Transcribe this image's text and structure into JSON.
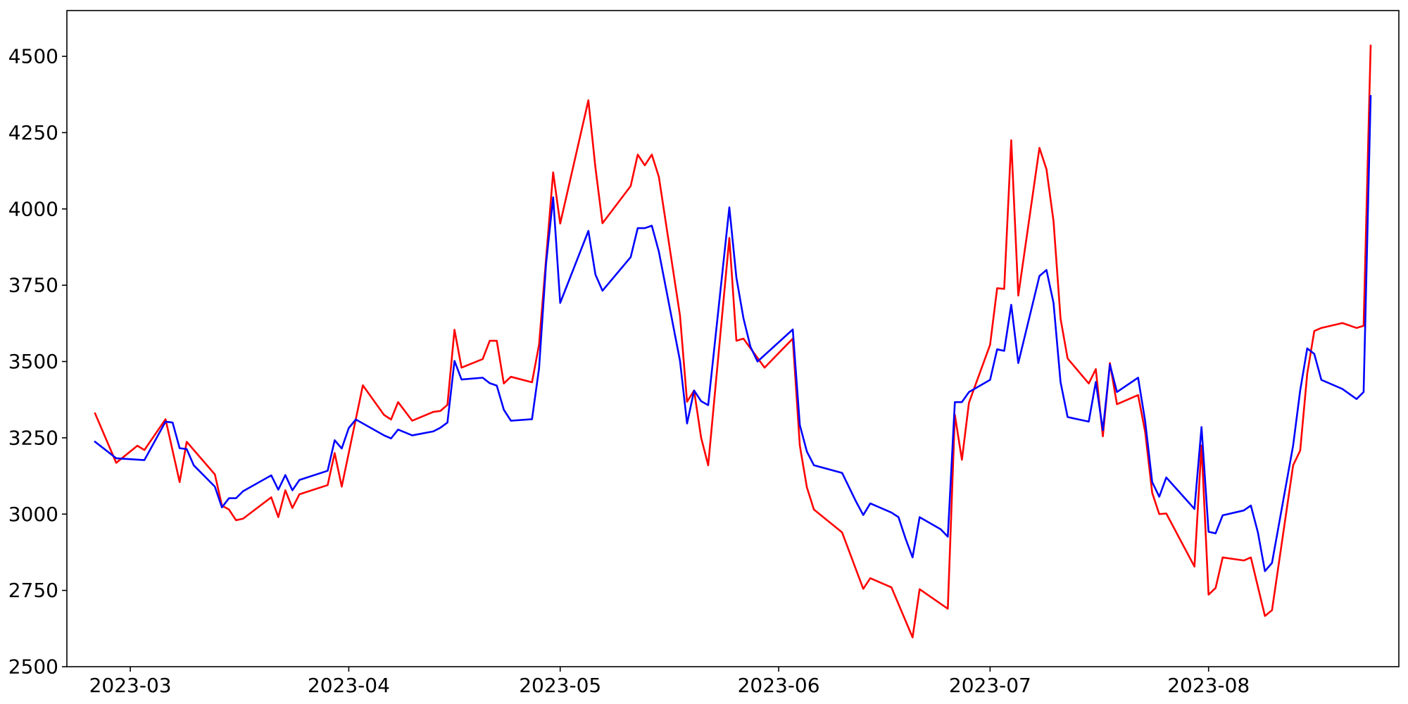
{
  "chart_data": {
    "type": "line",
    "title": "",
    "xlabel": "",
    "ylabel": "",
    "xlim": [
      "2023-02-20",
      "2023-08-28"
    ],
    "ylim": [
      2500,
      4650
    ],
    "x_ticks": [
      "2023-03-01",
      "2023-04-01",
      "2023-05-01",
      "2023-06-01",
      "2023-07-01",
      "2023-08-01"
    ],
    "x_tick_labels": [
      "2023-03",
      "2023-04",
      "2023-05",
      "2023-06",
      "2023-07",
      "2023-08"
    ],
    "y_ticks": [
      2500,
      2750,
      3000,
      3250,
      3500,
      3750,
      4000,
      4250,
      4500
    ],
    "y_tick_labels": [
      "2500",
      "2750",
      "3000",
      "3250",
      "3500",
      "3750",
      "4000",
      "4250",
      "4500"
    ],
    "grid": false,
    "series": [
      {
        "color": "#ff0000",
        "points": [
          [
            "2023-02-24",
            3330
          ],
          [
            "2023-02-27",
            3168
          ],
          [
            "2023-03-02",
            3224
          ],
          [
            "2023-03-03",
            3210
          ],
          [
            "2023-03-06",
            3311
          ],
          [
            "2023-03-08",
            3105
          ],
          [
            "2023-03-09",
            3237
          ],
          [
            "2023-03-13",
            3130
          ],
          [
            "2023-03-14",
            3028
          ],
          [
            "2023-03-15",
            3015
          ],
          [
            "2023-03-16",
            2980
          ],
          [
            "2023-03-17",
            2985
          ],
          [
            "2023-03-21",
            3055
          ],
          [
            "2023-03-22",
            2990
          ],
          [
            "2023-03-23",
            3078
          ],
          [
            "2023-03-24",
            3020
          ],
          [
            "2023-03-25",
            3065
          ],
          [
            "2023-03-29",
            3095
          ],
          [
            "2023-03-30",
            3200
          ],
          [
            "2023-03-31",
            3090
          ],
          [
            "2023-04-03",
            3422
          ],
          [
            "2023-04-06",
            3325
          ],
          [
            "2023-04-07",
            3310
          ],
          [
            "2023-04-08",
            3367
          ],
          [
            "2023-04-10",
            3306
          ],
          [
            "2023-04-13",
            3335
          ],
          [
            "2023-04-14",
            3338
          ],
          [
            "2023-04-15",
            3358
          ],
          [
            "2023-04-16",
            3604
          ],
          [
            "2023-04-17",
            3480
          ],
          [
            "2023-04-20",
            3508
          ],
          [
            "2023-04-21",
            3568
          ],
          [
            "2023-04-22",
            3568
          ],
          [
            "2023-04-23",
            3428
          ],
          [
            "2023-04-24",
            3450
          ],
          [
            "2023-04-27",
            3432
          ],
          [
            "2023-04-28",
            3555
          ],
          [
            "2023-04-30",
            4120
          ],
          [
            "2023-05-01",
            3952
          ],
          [
            "2023-05-05",
            4356
          ],
          [
            "2023-05-06",
            4135
          ],
          [
            "2023-05-07",
            3953
          ],
          [
            "2023-05-11",
            4075
          ],
          [
            "2023-05-12",
            4178
          ],
          [
            "2023-05-13",
            4143
          ],
          [
            "2023-05-14",
            4178
          ],
          [
            "2023-05-15",
            4105
          ],
          [
            "2023-05-18",
            3650
          ],
          [
            "2023-05-19",
            3368
          ],
          [
            "2023-05-20",
            3405
          ],
          [
            "2023-05-21",
            3250
          ],
          [
            "2023-05-22",
            3160
          ],
          [
            "2023-05-25",
            3905
          ],
          [
            "2023-05-26",
            3568
          ],
          [
            "2023-05-27",
            3575
          ],
          [
            "2023-05-30",
            3480
          ],
          [
            "2023-06-03",
            3575
          ],
          [
            "2023-06-04",
            3225
          ],
          [
            "2023-06-05",
            3088
          ],
          [
            "2023-06-06",
            3015
          ],
          [
            "2023-06-10",
            2940
          ],
          [
            "2023-06-13",
            2755
          ],
          [
            "2023-06-14",
            2790
          ],
          [
            "2023-06-17",
            2760
          ],
          [
            "2023-06-20",
            2596
          ],
          [
            "2023-06-21",
            2754
          ],
          [
            "2023-06-25",
            2690
          ],
          [
            "2023-06-26",
            3325
          ],
          [
            "2023-06-27",
            3178
          ],
          [
            "2023-06-28",
            3365
          ],
          [
            "2023-07-01",
            3555
          ],
          [
            "2023-07-02",
            3740
          ],
          [
            "2023-07-03",
            3738
          ],
          [
            "2023-07-04",
            4225
          ],
          [
            "2023-07-05",
            3716
          ],
          [
            "2023-07-08",
            4200
          ],
          [
            "2023-07-09",
            4130
          ],
          [
            "2023-07-10",
            3960
          ],
          [
            "2023-07-11",
            3640
          ],
          [
            "2023-07-12",
            3510
          ],
          [
            "2023-07-15",
            3428
          ],
          [
            "2023-07-16",
            3475
          ],
          [
            "2023-07-17",
            3255
          ],
          [
            "2023-07-18",
            3495
          ],
          [
            "2023-07-19",
            3360
          ],
          [
            "2023-07-22",
            3390
          ],
          [
            "2023-07-23",
            3270
          ],
          [
            "2023-07-24",
            3070
          ],
          [
            "2023-07-25",
            3000
          ],
          [
            "2023-07-26",
            3002
          ],
          [
            "2023-07-30",
            2828
          ],
          [
            "2023-07-31",
            3225
          ],
          [
            "2023-08-01",
            2736
          ],
          [
            "2023-08-02",
            2758
          ],
          [
            "2023-08-03",
            2858
          ],
          [
            "2023-08-06",
            2848
          ],
          [
            "2023-08-07",
            2858
          ],
          [
            "2023-08-09",
            2666
          ],
          [
            "2023-08-10",
            2685
          ],
          [
            "2023-08-13",
            3160
          ],
          [
            "2023-08-14",
            3208
          ],
          [
            "2023-08-15",
            3460
          ],
          [
            "2023-08-16",
            3600
          ],
          [
            "2023-08-17",
            3610
          ],
          [
            "2023-08-20",
            3626
          ],
          [
            "2023-08-22",
            3610
          ],
          [
            "2023-08-23",
            3617
          ],
          [
            "2023-08-24",
            4535
          ]
        ]
      },
      {
        "color": "#0000ff",
        "points": [
          [
            "2023-02-24",
            3237
          ],
          [
            "2023-02-27",
            3183
          ],
          [
            "2023-03-03",
            3177
          ],
          [
            "2023-03-06",
            3303
          ],
          [
            "2023-03-07",
            3300
          ],
          [
            "2023-03-08",
            3216
          ],
          [
            "2023-03-09",
            3213
          ],
          [
            "2023-03-10",
            3160
          ],
          [
            "2023-03-13",
            3090
          ],
          [
            "2023-03-14",
            3022
          ],
          [
            "2023-03-15",
            3052
          ],
          [
            "2023-03-16",
            3052
          ],
          [
            "2023-03-17",
            3075
          ],
          [
            "2023-03-21",
            3127
          ],
          [
            "2023-03-22",
            3080
          ],
          [
            "2023-03-23",
            3128
          ],
          [
            "2023-03-24",
            3078
          ],
          [
            "2023-03-25",
            3112
          ],
          [
            "2023-03-29",
            3142
          ],
          [
            "2023-03-30",
            3242
          ],
          [
            "2023-03-31",
            3215
          ],
          [
            "2023-04-01",
            3282
          ],
          [
            "2023-04-02",
            3310
          ],
          [
            "2023-04-06",
            3258
          ],
          [
            "2023-04-07",
            3248
          ],
          [
            "2023-04-08",
            3277
          ],
          [
            "2023-04-10",
            3258
          ],
          [
            "2023-04-13",
            3271
          ],
          [
            "2023-04-14",
            3283
          ],
          [
            "2023-04-15",
            3300
          ],
          [
            "2023-04-16",
            3502
          ],
          [
            "2023-04-17",
            3441
          ],
          [
            "2023-04-20",
            3447
          ],
          [
            "2023-04-21",
            3429
          ],
          [
            "2023-04-22",
            3421
          ],
          [
            "2023-04-23",
            3342
          ],
          [
            "2023-04-24",
            3306
          ],
          [
            "2023-04-27",
            3311
          ],
          [
            "2023-04-28",
            3478
          ],
          [
            "2023-04-29",
            3822
          ],
          [
            "2023-04-30",
            4038
          ],
          [
            "2023-05-01",
            3692
          ],
          [
            "2023-05-05",
            3928
          ],
          [
            "2023-05-06",
            3785
          ],
          [
            "2023-05-07",
            3732
          ],
          [
            "2023-05-11",
            3842
          ],
          [
            "2023-05-12",
            3937
          ],
          [
            "2023-05-13",
            3937
          ],
          [
            "2023-05-14",
            3945
          ],
          [
            "2023-05-15",
            3860
          ],
          [
            "2023-05-18",
            3502
          ],
          [
            "2023-05-19",
            3297
          ],
          [
            "2023-05-20",
            3405
          ],
          [
            "2023-05-21",
            3370
          ],
          [
            "2023-05-22",
            3357
          ],
          [
            "2023-05-25",
            4005
          ],
          [
            "2023-05-26",
            3775
          ],
          [
            "2023-05-27",
            3642
          ],
          [
            "2023-05-28",
            3548
          ],
          [
            "2023-05-29",
            3500
          ],
          [
            "2023-06-03",
            3605
          ],
          [
            "2023-06-04",
            3292
          ],
          [
            "2023-06-05",
            3205
          ],
          [
            "2023-06-06",
            3160
          ],
          [
            "2023-06-10",
            3135
          ],
          [
            "2023-06-12",
            3040
          ],
          [
            "2023-06-13",
            2997
          ],
          [
            "2023-06-14",
            3035
          ],
          [
            "2023-06-17",
            3005
          ],
          [
            "2023-06-18",
            2990
          ],
          [
            "2023-06-19",
            2920
          ],
          [
            "2023-06-20",
            2858
          ],
          [
            "2023-06-21",
            2990
          ],
          [
            "2023-06-24",
            2950
          ],
          [
            "2023-06-25",
            2926
          ],
          [
            "2023-06-26",
            3367
          ],
          [
            "2023-06-27",
            3367
          ],
          [
            "2023-06-28",
            3400
          ],
          [
            "2023-07-01",
            3440
          ],
          [
            "2023-07-02",
            3540
          ],
          [
            "2023-07-03",
            3535
          ],
          [
            "2023-07-04",
            3686
          ],
          [
            "2023-07-05",
            3495
          ],
          [
            "2023-07-08",
            3780
          ],
          [
            "2023-07-09",
            3800
          ],
          [
            "2023-07-10",
            3692
          ],
          [
            "2023-07-11",
            3432
          ],
          [
            "2023-07-12",
            3318
          ],
          [
            "2023-07-15",
            3303
          ],
          [
            "2023-07-16",
            3433
          ],
          [
            "2023-07-17",
            3275
          ],
          [
            "2023-07-18",
            3490
          ],
          [
            "2023-07-19",
            3400
          ],
          [
            "2023-07-22",
            3447
          ],
          [
            "2023-07-23",
            3305
          ],
          [
            "2023-07-24",
            3105
          ],
          [
            "2023-07-25",
            3057
          ],
          [
            "2023-07-26",
            3120
          ],
          [
            "2023-07-30",
            3017
          ],
          [
            "2023-07-31",
            3285
          ],
          [
            "2023-08-01",
            2942
          ],
          [
            "2023-08-02",
            2937
          ],
          [
            "2023-08-03",
            2996
          ],
          [
            "2023-08-06",
            3012
          ],
          [
            "2023-08-07",
            3028
          ],
          [
            "2023-08-08",
            2940
          ],
          [
            "2023-08-09",
            2813
          ],
          [
            "2023-08-10",
            2840
          ],
          [
            "2023-08-13",
            3225
          ],
          [
            "2023-08-14",
            3405
          ],
          [
            "2023-08-15",
            3543
          ],
          [
            "2023-08-16",
            3525
          ],
          [
            "2023-08-17",
            3440
          ],
          [
            "2023-08-20",
            3410
          ],
          [
            "2023-08-22",
            3377
          ],
          [
            "2023-08-23",
            3400
          ],
          [
            "2023-08-24",
            4370
          ]
        ]
      }
    ]
  }
}
